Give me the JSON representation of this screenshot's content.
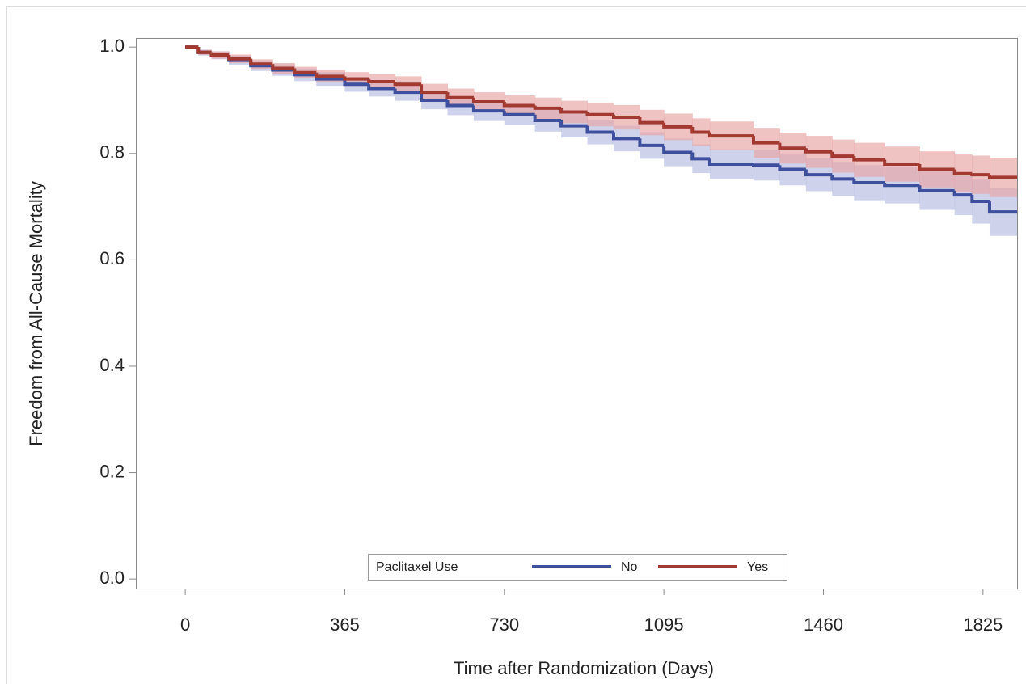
{
  "chart_data": {
    "type": "km",
    "x_label": "Time after Randomization (Days)",
    "y_label": "Freedom from All-Cause Mortality",
    "legend_title": "Paclitaxel Use",
    "legend_position": "bottom",
    "xlim": [
      -113,
      1903
    ],
    "ylim": [
      -0.018,
      1.017
    ],
    "xticks": [
      0,
      365,
      730,
      1095,
      1460,
      1825
    ],
    "yticks": [
      {
        "value": 0,
        "label": "0.0"
      },
      0.2,
      0.4,
      0.6,
      0.8,
      {
        "value": 1,
        "label": "1.0"
      }
    ],
    "x": [
      0,
      30,
      60,
      100,
      150,
      200,
      250,
      300,
      365,
      420,
      480,
      540,
      600,
      660,
      730,
      800,
      860,
      920,
      980,
      1040,
      1095,
      1160,
      1200,
      1300,
      1360,
      1420,
      1480,
      1530,
      1600,
      1680,
      1760,
      1800,
      1840
    ],
    "series": [
      {
        "name": "No",
        "color": "#3e4f9d",
        "band_color": "#b3bbe0",
        "values": [
          1.0,
          0.99,
          0.985,
          0.975,
          0.965,
          0.957,
          0.948,
          0.94,
          0.93,
          0.922,
          0.915,
          0.9,
          0.89,
          0.88,
          0.873,
          0.862,
          0.852,
          0.84,
          0.828,
          0.815,
          0.802,
          0.79,
          0.78,
          0.778,
          0.77,
          0.76,
          0.752,
          0.745,
          0.74,
          0.73,
          0.722,
          0.71,
          0.69
        ],
        "lower": [
          1.0,
          0.984,
          0.977,
          0.966,
          0.955,
          0.946,
          0.936,
          0.927,
          0.916,
          0.907,
          0.899,
          0.883,
          0.872,
          0.861,
          0.853,
          0.841,
          0.83,
          0.817,
          0.804,
          0.79,
          0.776,
          0.763,
          0.752,
          0.749,
          0.74,
          0.729,
          0.72,
          0.712,
          0.706,
          0.694,
          0.684,
          0.668,
          0.645
        ],
        "upper": [
          1.0,
          0.995,
          0.992,
          0.984,
          0.975,
          0.968,
          0.96,
          0.953,
          0.944,
          0.937,
          0.931,
          0.917,
          0.908,
          0.899,
          0.893,
          0.883,
          0.874,
          0.863,
          0.852,
          0.84,
          0.828,
          0.817,
          0.808,
          0.807,
          0.8,
          0.791,
          0.784,
          0.778,
          0.774,
          0.766,
          0.76,
          0.752,
          0.735
        ]
      },
      {
        "name": "Yes",
        "color": "#a33a31",
        "band_color": "#e8a3a3",
        "values": [
          1.0,
          0.99,
          0.985,
          0.978,
          0.968,
          0.96,
          0.952,
          0.945,
          0.94,
          0.935,
          0.93,
          0.915,
          0.905,
          0.897,
          0.89,
          0.885,
          0.878,
          0.873,
          0.868,
          0.858,
          0.85,
          0.84,
          0.833,
          0.82,
          0.81,
          0.803,
          0.795,
          0.788,
          0.78,
          0.77,
          0.762,
          0.76,
          0.755
        ],
        "lower": [
          1.0,
          0.985,
          0.978,
          0.97,
          0.959,
          0.95,
          0.941,
          0.933,
          0.927,
          0.921,
          0.915,
          0.899,
          0.888,
          0.879,
          0.871,
          0.865,
          0.857,
          0.851,
          0.845,
          0.834,
          0.825,
          0.814,
          0.806,
          0.792,
          0.781,
          0.773,
          0.764,
          0.756,
          0.747,
          0.736,
          0.727,
          0.724,
          0.718
        ],
        "upper": [
          1.0,
          0.995,
          0.992,
          0.986,
          0.977,
          0.97,
          0.963,
          0.957,
          0.953,
          0.949,
          0.945,
          0.931,
          0.922,
          0.915,
          0.909,
          0.905,
          0.899,
          0.895,
          0.891,
          0.882,
          0.875,
          0.866,
          0.86,
          0.848,
          0.839,
          0.833,
          0.826,
          0.82,
          0.813,
          0.804,
          0.798,
          0.796,
          0.792
        ]
      }
    ]
  }
}
